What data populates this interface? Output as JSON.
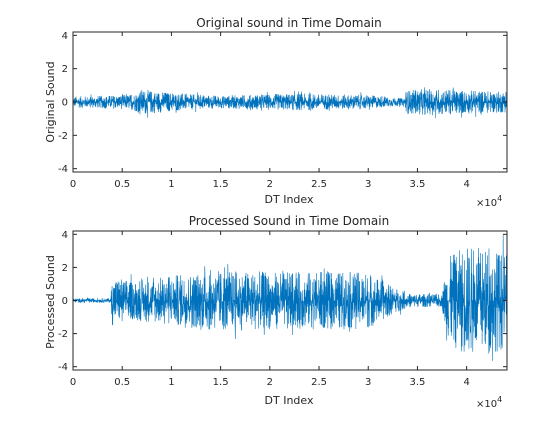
{
  "figure": {
    "background": "#ffffff"
  },
  "chart_data": [
    {
      "type": "line",
      "title": "Original sound in Time Domain",
      "xlabel": "DT Index",
      "ylabel": "Original Sound",
      "xlim": [
        0,
        44100
      ],
      "ylim": [
        -4.2,
        4.2
      ],
      "xticks": [
        0,
        5000,
        10000,
        15000,
        20000,
        25000,
        30000,
        35000,
        40000
      ],
      "xtick_labels": [
        "0",
        "0.5",
        "1",
        "1.5",
        "2",
        "2.5",
        "3",
        "3.5",
        "4"
      ],
      "x_exponent_label": "×10",
      "x_exponent_power": "4",
      "yticks": [
        -4,
        -2,
        0,
        2,
        4
      ],
      "ytick_labels": [
        "-4",
        "-2",
        "0",
        "2",
        "4"
      ],
      "grid": false,
      "color": "#0072bd",
      "series": [
        {
          "x_start": 0,
          "x_end": 44100,
          "amplitude_envelope": [
            {
              "x": 0,
              "amp": 0.4
            },
            {
              "x": 3000,
              "amp": 0.45
            },
            {
              "x": 6000,
              "amp": 0.55
            },
            {
              "x": 7000,
              "amp": 0.9
            },
            {
              "x": 9000,
              "amp": 0.75
            },
            {
              "x": 12000,
              "amp": 0.55
            },
            {
              "x": 15000,
              "amp": 0.45
            },
            {
              "x": 19000,
              "amp": 0.55
            },
            {
              "x": 23000,
              "amp": 0.6
            },
            {
              "x": 26000,
              "amp": 0.55
            },
            {
              "x": 30000,
              "amp": 0.5
            },
            {
              "x": 33500,
              "amp": 0.25
            },
            {
              "x": 34000,
              "amp": 0.85
            },
            {
              "x": 37000,
              "amp": 0.95
            },
            {
              "x": 40000,
              "amp": 0.85
            },
            {
              "x": 44100,
              "amp": 0.75
            }
          ]
        }
      ]
    },
    {
      "type": "line",
      "title": "Processed Sound in Time Domain",
      "xlabel": "DT Index",
      "ylabel": "Processed Sound",
      "xlim": [
        0,
        44100
      ],
      "ylim": [
        -4.2,
        4.2
      ],
      "xticks": [
        0,
        5000,
        10000,
        15000,
        20000,
        25000,
        30000,
        35000,
        40000
      ],
      "xtick_labels": [
        "0",
        "0.5",
        "1",
        "1.5",
        "2",
        "2.5",
        "3",
        "3.5",
        "4"
      ],
      "x_exponent_label": "×10",
      "x_exponent_power": "4",
      "yticks": [
        -4,
        -2,
        0,
        2,
        4
      ],
      "ytick_labels": [
        "-4",
        "-2",
        "0",
        "2",
        "4"
      ],
      "grid": false,
      "color": "#0072bd",
      "series": [
        {
          "x_start": 0,
          "x_end": 44100,
          "amplitude_envelope": [
            {
              "x": 0,
              "amp": 0.15
            },
            {
              "x": 3800,
              "amp": 0.15
            },
            {
              "x": 4000,
              "amp": 1.8
            },
            {
              "x": 6000,
              "amp": 1.4
            },
            {
              "x": 10000,
              "amp": 1.8
            },
            {
              "x": 14000,
              "amp": 2.2
            },
            {
              "x": 18000,
              "amp": 2.1
            },
            {
              "x": 22000,
              "amp": 2.0
            },
            {
              "x": 26000,
              "amp": 2.1
            },
            {
              "x": 30000,
              "amp": 2.0
            },
            {
              "x": 32500,
              "amp": 1.0
            },
            {
              "x": 34000,
              "amp": 0.5
            },
            {
              "x": 37500,
              "amp": 0.45
            },
            {
              "x": 38000,
              "amp": 3.0
            },
            {
              "x": 40000,
              "amp": 4.0
            },
            {
              "x": 44100,
              "amp": 3.5
            }
          ]
        }
      ]
    }
  ]
}
